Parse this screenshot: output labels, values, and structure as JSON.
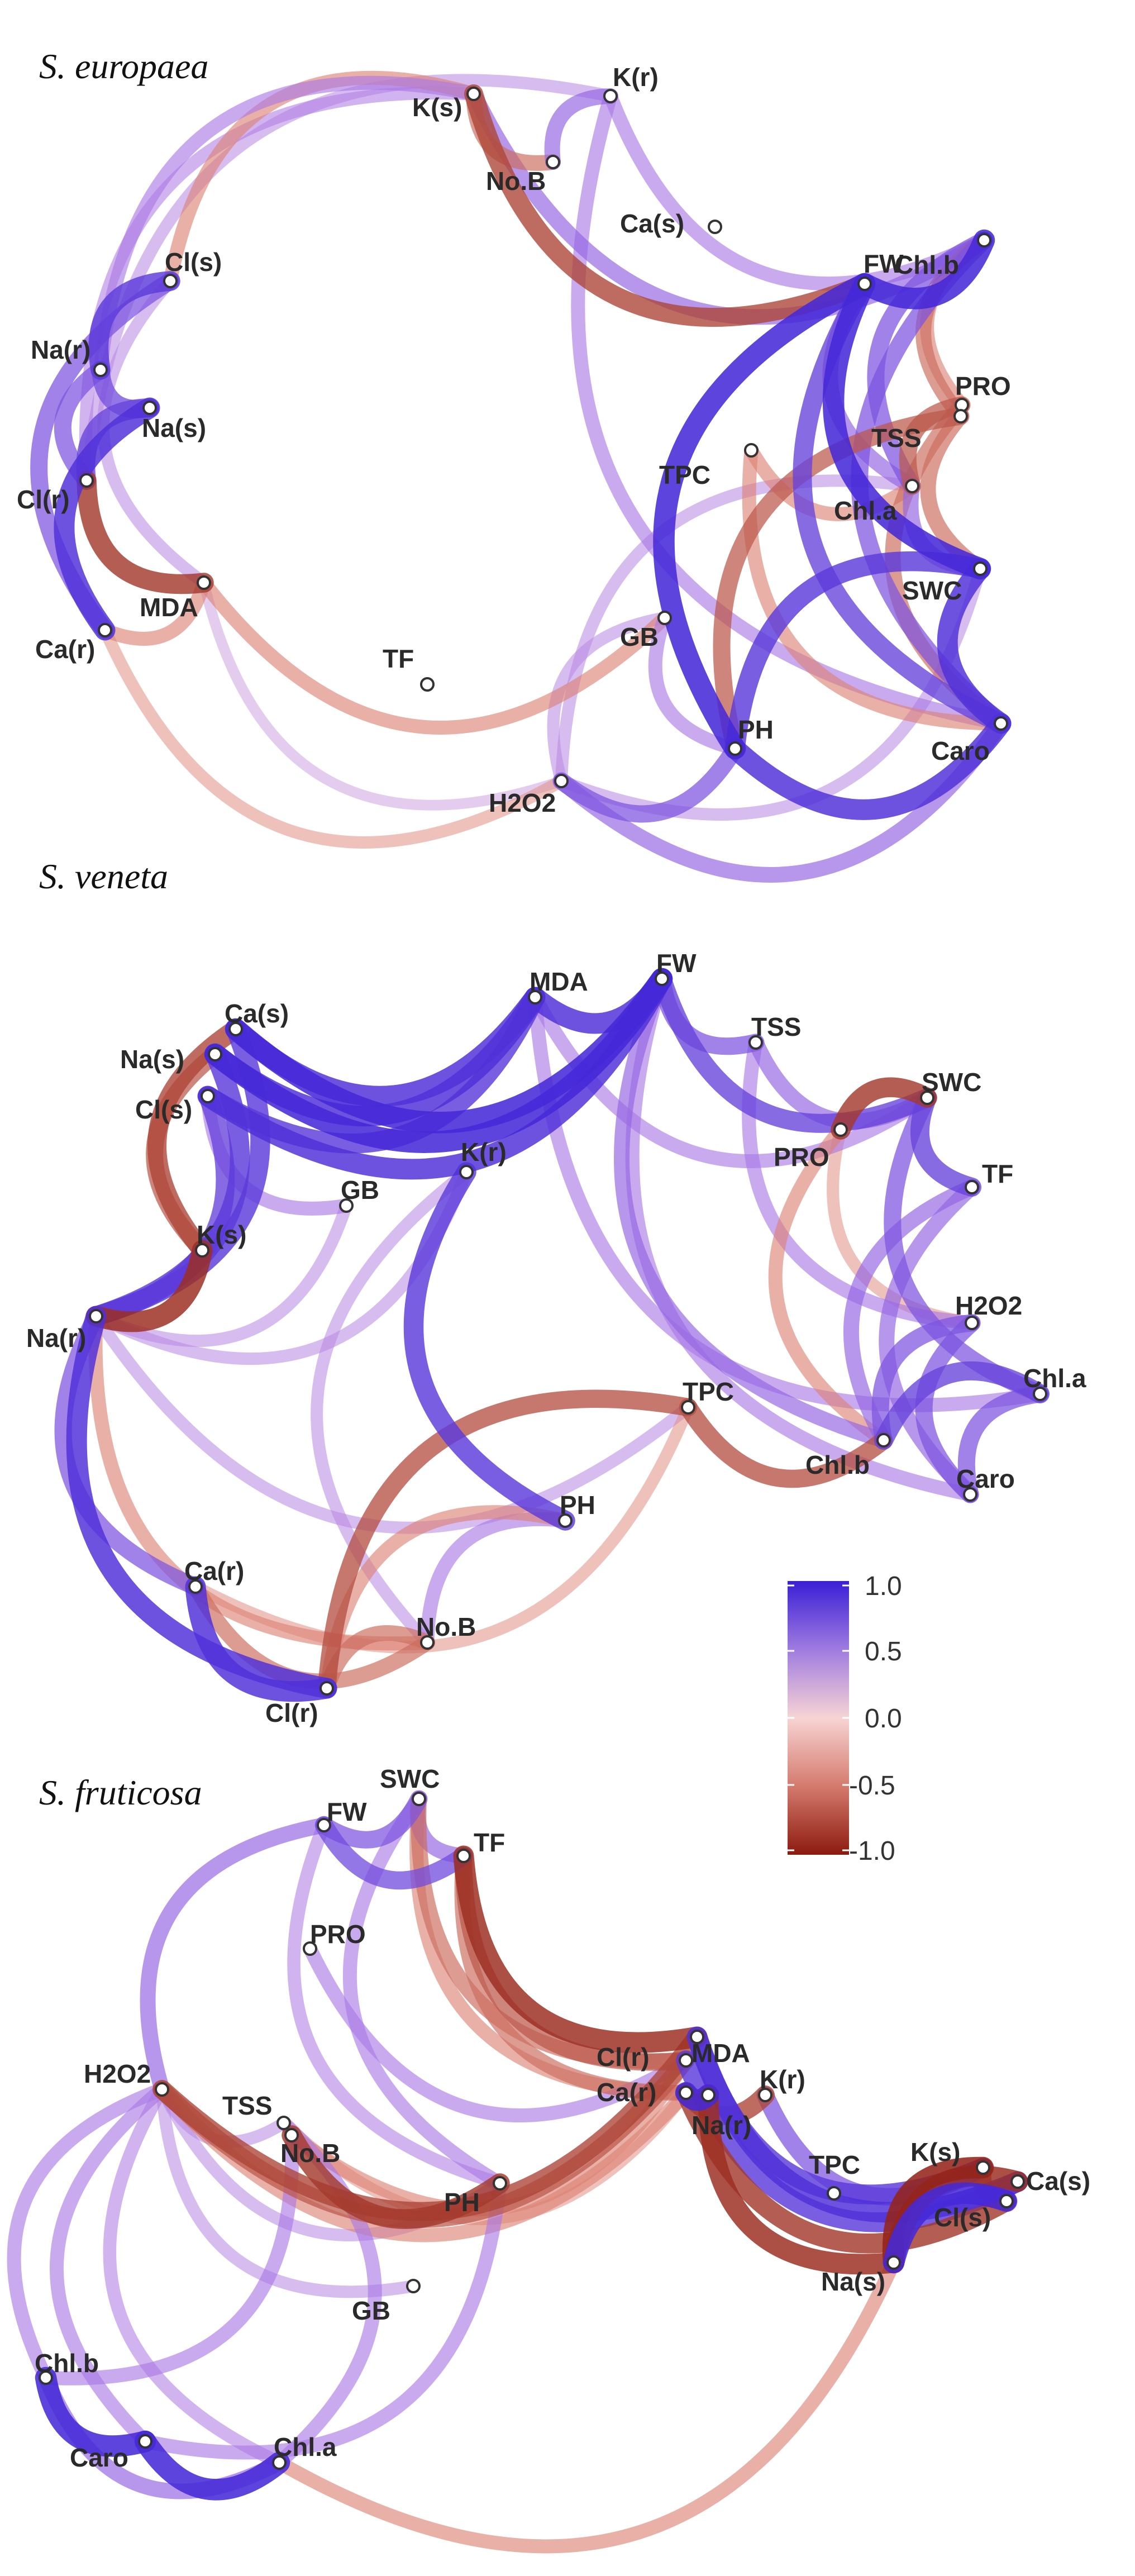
{
  "colors": {
    "positive": "#3a1fd6",
    "mid": "#f7d4d4",
    "negative": "#8c1a0f",
    "node_fill": "#ffffff",
    "node_stroke": "#333333"
  },
  "colorbar": {
    "labels": [
      "1.0",
      "0.5",
      "0.0",
      "-0.5",
      "-1.0"
    ]
  },
  "panels": [
    {
      "title": "S. europaea",
      "nodes": [
        "K(s)",
        "K(r)",
        "No.B",
        "Ca(s)",
        "Cl(s)",
        "Na(r)",
        "Na(s)",
        "Cl(r)",
        "MDA",
        "Ca(r)",
        "TF",
        "FW",
        "Chl.b",
        "PRO",
        "TSS",
        "TPC",
        "Chl.a",
        "SWC",
        "GB",
        "PH",
        "Caro",
        "H2O2"
      ],
      "edges": [
        [
          "K(s)",
          "FW",
          -0.8
        ],
        [
          "K(s)",
          "Chl.b",
          0.6
        ],
        [
          "K(s)",
          "No.B",
          -0.6
        ],
        [
          "K(s)",
          "Cl(s)",
          -0.5
        ],
        [
          "K(s)",
          "Na(r)",
          0.5
        ],
        [
          "K(s)",
          "Cl(r)",
          0.45
        ],
        [
          "K(r)",
          "No.B",
          0.6
        ],
        [
          "K(r)",
          "Chl.b",
          0.5
        ],
        [
          "K(r)",
          "Cl(r)",
          0.4
        ],
        [
          "K(r)",
          "Caro",
          0.5
        ],
        [
          "Cl(s)",
          "Na(r)",
          0.85
        ],
        [
          "Cl(s)",
          "Ca(r)",
          0.7
        ],
        [
          "Na(r)",
          "Na(s)",
          0.75
        ],
        [
          "Na(r)",
          "Cl(r)",
          0.7
        ],
        [
          "Na(s)",
          "Cl(r)",
          0.8
        ],
        [
          "Na(s)",
          "Ca(r)",
          0.9
        ],
        [
          "Cl(r)",
          "MDA",
          -0.85
        ],
        [
          "Ca(r)",
          "MDA",
          -0.5
        ],
        [
          "MDA",
          "GB",
          -0.5
        ],
        [
          "MDA",
          "H2O2",
          0.3
        ],
        [
          "Ca(r)",
          "H2O2",
          -0.4
        ],
        [
          "Cl(s)",
          "MDA",
          0.4
        ],
        [
          "FW",
          "Chl.b",
          0.95
        ],
        [
          "FW",
          "Chl.a",
          0.6
        ],
        [
          "FW",
          "SWC",
          0.95
        ],
        [
          "FW",
          "PH",
          0.95
        ],
        [
          "FW",
          "Caro",
          0.8
        ],
        [
          "Chl.b",
          "PRO",
          -0.5
        ],
        [
          "Chl.b",
          "TSS",
          -0.6
        ],
        [
          "Chl.b",
          "Chl.a",
          0.7
        ],
        [
          "Chl.b",
          "Caro",
          0.7
        ],
        [
          "PRO",
          "Chl.a",
          -0.7
        ],
        [
          "PRO",
          "Caro",
          -0.6
        ],
        [
          "TSS",
          "SWC",
          -0.6
        ],
        [
          "TSS",
          "PH",
          -0.7
        ],
        [
          "TPC",
          "Chl.a",
          -0.5
        ],
        [
          "TPC",
          "Caro",
          -0.5
        ],
        [
          "Chl.a",
          "SWC",
          0.6
        ],
        [
          "Chl.a",
          "H2O2",
          0.4
        ],
        [
          "SWC",
          "PH",
          0.85
        ],
        [
          "SWC",
          "Caro",
          0.9
        ],
        [
          "GB",
          "H2O2",
          0.4
        ],
        [
          "GB",
          "PH",
          0.5
        ],
        [
          "PH",
          "Caro",
          0.9
        ],
        [
          "H2O2",
          "PH",
          0.7
        ],
        [
          "H2O2",
          "Caro",
          0.6
        ],
        [
          "H2O2",
          "SWC",
          0.4
        ]
      ]
    },
    {
      "title": "S. veneta",
      "nodes": [
        "MDA",
        "FW",
        "Ca(s)",
        "TSS",
        "Na(s)",
        "SWC",
        "Cl(s)",
        "K(r)",
        "PRO",
        "GB",
        "TF",
        "K(s)",
        "H2O2",
        "Na(r)",
        "Chl.a",
        "TPC",
        "Chl.b",
        "Caro",
        "PH",
        "Ca(r)",
        "No.B",
        "Cl(r)"
      ],
      "edges": [
        [
          "Ca(s)",
          "FW",
          0.95
        ],
        [
          "Na(s)",
          "FW",
          0.95
        ],
        [
          "Cl(s)",
          "FW",
          0.9
        ],
        [
          "Ca(s)",
          "MDA",
          0.9
        ],
        [
          "Na(s)",
          "MDA",
          0.9
        ],
        [
          "Cl(s)",
          "MDA",
          0.85
        ],
        [
          "Ca(s)",
          "K(s)",
          -0.8
        ],
        [
          "Na(s)",
          "K(s)",
          -0.7
        ],
        [
          "Cl(s)",
          "GB",
          0.5
        ],
        [
          "Na(r)",
          "K(s)",
          -0.9
        ],
        [
          "Na(r)",
          "Ca(s)",
          0.85
        ],
        [
          "Na(r)",
          "Na(s)",
          0.85
        ],
        [
          "Na(r)",
          "Cl(s)",
          0.8
        ],
        [
          "Na(r)",
          "Ca(r)",
          0.7
        ],
        [
          "Na(r)",
          "Cl(r)",
          0.9
        ],
        [
          "Na(r)",
          "No.B",
          -0.5
        ],
        [
          "Na(r)",
          "TPC",
          0.4
        ],
        [
          "Na(r)",
          "K(r)",
          0.4
        ],
        [
          "Na(r)",
          "GB",
          0.4
        ],
        [
          "K(r)",
          "PH",
          0.85
        ],
        [
          "K(r)",
          "No.B",
          0.4
        ],
        [
          "MDA",
          "FW",
          0.9
        ],
        [
          "MDA",
          "SWC",
          0.5
        ],
        [
          "MDA",
          "Chl.a",
          0.5
        ],
        [
          "FW",
          "TSS",
          0.7
        ],
        [
          "FW",
          "SWC",
          0.8
        ],
        [
          "FW",
          "Chl.b",
          0.6
        ],
        [
          "FW",
          "Caro",
          0.5
        ],
        [
          "TSS",
          "SWC",
          0.6
        ],
        [
          "TSS",
          "H2O2",
          0.5
        ],
        [
          "SWC",
          "PRO",
          -0.85
        ],
        [
          "SWC",
          "TF",
          0.8
        ],
        [
          "SWC",
          "Chl.a",
          0.7
        ],
        [
          "PRO",
          "Chl.b",
          -0.5
        ],
        [
          "PRO",
          "H2O2",
          -0.4
        ],
        [
          "TF",
          "Chl.b",
          0.6
        ],
        [
          "TF",
          "Caro",
          0.6
        ],
        [
          "H2O2",
          "Chl.b",
          0.7
        ],
        [
          "H2O2",
          "Caro",
          0.7
        ],
        [
          "Chl.a",
          "Chl.b",
          0.8
        ],
        [
          "Chl.a",
          "Caro",
          0.7
        ],
        [
          "TPC",
          "Chl.b",
          -0.75
        ],
        [
          "TPC",
          "Cl(r)",
          -0.75
        ],
        [
          "PH",
          "No.B",
          0.5
        ],
        [
          "PH",
          "Cl(r)",
          -0.5
        ],
        [
          "Ca(r)",
          "No.B",
          -0.6
        ],
        [
          "Ca(r)",
          "Cl(r)",
          0.9
        ],
        [
          "No.B",
          "Cl(r)",
          -0.6
        ],
        [
          "Ca(r)",
          "TPC",
          -0.4
        ]
      ]
    },
    {
      "title": "S. fruticosa",
      "nodes": [
        "SWC",
        "FW",
        "TF",
        "PRO",
        "MDA",
        "H2O2",
        "Cl(r)",
        "Ca(r)",
        "K(r)",
        "TSS",
        "Na(r)",
        "No.B",
        "TPC",
        "K(s)",
        "Ca(s)",
        "PH",
        "Cl(s)",
        "Na(s)",
        "GB",
        "Chl.b",
        "Caro",
        "Chl.a"
      ],
      "edges": [
        [
          "FW",
          "SWC",
          0.7
        ],
        [
          "FW",
          "TF",
          0.75
        ],
        [
          "SWC",
          "TF",
          0.6
        ],
        [
          "TF",
          "MDA",
          -0.9
        ],
        [
          "TF",
          "Cl(r)",
          -0.7
        ],
        [
          "TF",
          "Ca(r)",
          -0.6
        ],
        [
          "SWC",
          "Cl(r)",
          -0.6
        ],
        [
          "SWC",
          "Ca(r)",
          -0.5
        ],
        [
          "SWC",
          "PH",
          0.5
        ],
        [
          "FW",
          "H2O2",
          0.6
        ],
        [
          "FW",
          "PH",
          0.45
        ],
        [
          "PRO",
          "Cl(r)",
          0.5
        ],
        [
          "H2O2",
          "MDA",
          -0.8
        ],
        [
          "H2O2",
          "Cl(r)",
          -0.7
        ],
        [
          "H2O2",
          "Ca(r)",
          -0.5
        ],
        [
          "H2O2",
          "TSS",
          0.4
        ],
        [
          "H2O2",
          "PH",
          0.4
        ],
        [
          "H2O2",
          "GB",
          0.4
        ],
        [
          "H2O2",
          "Chl.b",
          0.5
        ],
        [
          "H2O2",
          "Caro",
          0.5
        ],
        [
          "H2O2",
          "Chl.a",
          0.45
        ],
        [
          "MDA",
          "Ca(s)",
          0.9
        ],
        [
          "MDA",
          "K(s)",
          0.85
        ],
        [
          "Cl(r)",
          "Ca(s)",
          0.85
        ],
        [
          "Ca(r)",
          "Cl(s)",
          -0.85
        ],
        [
          "Ca(r)",
          "Na(r)",
          0.95
        ],
        [
          "Ca(r)",
          "K(r)",
          -0.8
        ],
        [
          "Na(r)",
          "Na(s)",
          -0.9
        ],
        [
          "K(r)",
          "K(s)",
          0.7
        ],
        [
          "K(s)",
          "Na(s)",
          -0.95
        ],
        [
          "K(s)",
          "Cl(s)",
          -0.8
        ],
        [
          "Ca(s)",
          "Na(s)",
          -0.9
        ],
        [
          "Cl(s)",
          "Na(s)",
          0.95
        ],
        [
          "No.B",
          "PH",
          -0.85
        ],
        [
          "TSS",
          "Ca(r)",
          -0.4
        ],
        [
          "No.B",
          "Cl(r)",
          -0.5
        ],
        [
          "Chl.b",
          "Caro",
          0.95
        ],
        [
          "Caro",
          "Chl.a",
          0.95
        ],
        [
          "Chl.b",
          "Chl.a",
          0.6
        ],
        [
          "Caro",
          "PH",
          0.5
        ],
        [
          "Chl.a",
          "TSS",
          0.5
        ],
        [
          "Chl.a",
          "Na(s)",
          -0.5
        ],
        [
          "Chl.b",
          "No.B",
          0.5
        ]
      ]
    }
  ]
}
